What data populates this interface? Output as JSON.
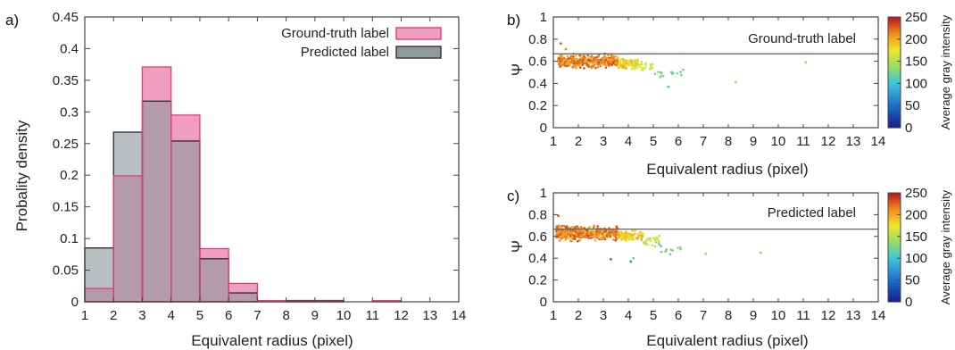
{
  "chart_data": [
    {
      "type": "bar",
      "panel_label": "a)",
      "xlabel": "Equivalent radius (pixel)",
      "ylabel": "Probality density",
      "xlim": [
        1,
        14
      ],
      "ylim": [
        0,
        0.45
      ],
      "xticks": [
        1,
        2,
        3,
        4,
        5,
        6,
        7,
        8,
        9,
        10,
        11,
        12,
        13,
        14
      ],
      "yticks": [
        "0",
        "0.05",
        "0.1",
        "0.15",
        "0.2",
        "0.25",
        "0.3",
        "0.35",
        "0.4",
        "0.45"
      ],
      "legend_position": "top-right",
      "bin_edges": [
        1,
        2,
        3,
        4,
        5,
        6,
        7,
        8,
        9,
        10,
        11,
        12,
        13,
        14
      ],
      "series": [
        {
          "name": "Ground-truth label",
          "color": "#e23d7a",
          "fill": "#ef9fbd",
          "values": [
            0.021,
            0.199,
            0.371,
            0.295,
            0.084,
            0.029,
            0.002,
            0.001,
            0.001,
            0.0,
            0.002,
            0.0,
            0.0
          ]
        },
        {
          "name": "Predicted label",
          "color": "#333333",
          "fill": "#8e9a9c",
          "values": [
            0.085,
            0.268,
            0.317,
            0.254,
            0.068,
            0.014,
            0.0,
            0.002,
            0.002,
            0.0,
            0.0,
            0.0,
            0.0
          ]
        }
      ]
    },
    {
      "type": "scatter",
      "panel_label": "b)",
      "xlabel": "Equivalent radius (pixel)",
      "ylabel": "Ψ",
      "annotation": "Ground-truth label",
      "xlim": [
        1,
        14
      ],
      "ylim": [
        0,
        1
      ],
      "xticks": [
        1,
        2,
        3,
        4,
        5,
        6,
        7,
        8,
        9,
        10,
        11,
        12,
        13,
        14
      ],
      "yticks": [
        "0",
        "0.2",
        "0.4",
        "0.6",
        "0.8",
        "1"
      ],
      "hline": 0.667,
      "colorbar": {
        "label": "Average gray intensity",
        "range": [
          0,
          250
        ],
        "ticks": [
          "0",
          "50",
          "100",
          "150",
          "200",
          "250"
        ]
      },
      "clusters": [
        {
          "x": [
            1.2,
            3.6
          ],
          "y": [
            0.52,
            0.68
          ],
          "intensity": [
            195,
            235
          ],
          "count": 360
        },
        {
          "x": [
            3.6,
            4.4
          ],
          "y": [
            0.52,
            0.64
          ],
          "intensity": [
            165,
            205
          ],
          "count": 90
        },
        {
          "x": [
            4.2,
            5.0
          ],
          "y": [
            0.5,
            0.62
          ],
          "intensity": [
            145,
            175
          ],
          "count": 30
        },
        {
          "x": [
            5.0,
            6.2
          ],
          "y": [
            0.42,
            0.56
          ],
          "intensity": [
            105,
            140
          ],
          "count": 14
        }
      ],
      "points": [
        {
          "x": 1.3,
          "y": 0.76,
          "intensity": 225
        },
        {
          "x": 1.5,
          "y": 0.71,
          "intensity": 210
        },
        {
          "x": 5.6,
          "y": 0.37,
          "intensity": 100
        },
        {
          "x": 8.3,
          "y": 0.41,
          "intensity": 140
        },
        {
          "x": 11.1,
          "y": 0.59,
          "intensity": 140
        }
      ]
    },
    {
      "type": "scatter",
      "panel_label": "c)",
      "xlabel": "Equivalent radius (pixel)",
      "ylabel": "Ψ",
      "annotation": "Predicted label",
      "xlim": [
        1,
        14
      ],
      "ylim": [
        0,
        1
      ],
      "xticks": [
        1,
        2,
        3,
        4,
        5,
        6,
        7,
        8,
        9,
        10,
        11,
        12,
        13,
        14
      ],
      "yticks": [
        "0",
        "0.2",
        "0.4",
        "0.6",
        "0.8",
        "1"
      ],
      "hline": 0.667,
      "colorbar": {
        "label": "Average gray intensity",
        "range": [
          0,
          250
        ],
        "ticks": [
          "0",
          "50",
          "100",
          "150",
          "200",
          "250"
        ]
      },
      "clusters": [
        {
          "x": [
            1.1,
            3.6
          ],
          "y": [
            0.54,
            0.72
          ],
          "intensity": [
            195,
            235
          ],
          "count": 420
        },
        {
          "x": [
            3.6,
            4.6
          ],
          "y": [
            0.55,
            0.66
          ],
          "intensity": [
            165,
            205
          ],
          "count": 100
        },
        {
          "x": [
            4.6,
            5.3
          ],
          "y": [
            0.5,
            0.62
          ],
          "intensity": [
            140,
            175
          ],
          "count": 25
        },
        {
          "x": [
            5.2,
            6.3
          ],
          "y": [
            0.4,
            0.55
          ],
          "intensity": [
            105,
            140
          ],
          "count": 14
        }
      ],
      "points": [
        {
          "x": 1.2,
          "y": 0.79,
          "intensity": 230
        },
        {
          "x": 3.3,
          "y": 0.39,
          "intensity": 55
        },
        {
          "x": 4.1,
          "y": 0.37,
          "intensity": 70
        },
        {
          "x": 4.2,
          "y": 0.4,
          "intensity": 110
        },
        {
          "x": 7.1,
          "y": 0.44,
          "intensity": 140
        },
        {
          "x": 9.3,
          "y": 0.45,
          "intensity": 140
        }
      ]
    }
  ]
}
